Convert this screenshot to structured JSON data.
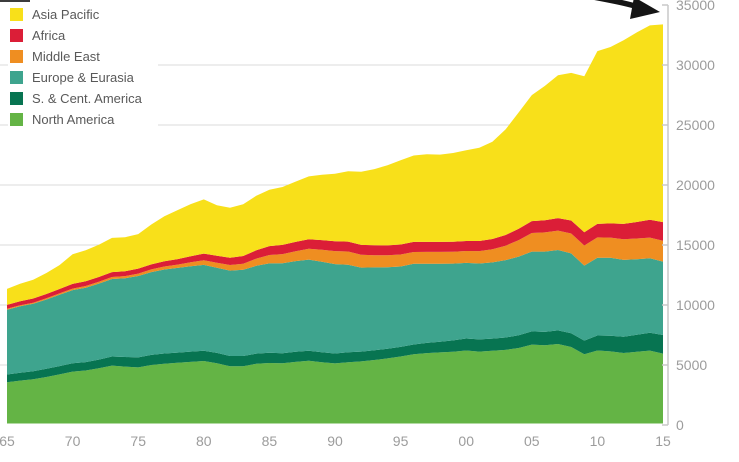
{
  "chart_data": {
    "type": "area",
    "stacked": true,
    "title": "",
    "xlabel": "",
    "ylabel": "",
    "x_years": [
      1965,
      1966,
      1967,
      1968,
      1969,
      1970,
      1971,
      1972,
      1973,
      1974,
      1975,
      1976,
      1977,
      1978,
      1979,
      1980,
      1981,
      1982,
      1983,
      1984,
      1985,
      1986,
      1987,
      1988,
      1989,
      1990,
      1991,
      1992,
      1993,
      1994,
      1995,
      1996,
      1997,
      1998,
      1999,
      2000,
      2001,
      2002,
      2003,
      2004,
      2005,
      2006,
      2007,
      2008,
      2009,
      2010,
      2011,
      2012,
      2013,
      2014,
      2015
    ],
    "x_tick_years": [
      1965,
      1970,
      1975,
      1980,
      1985,
      1990,
      1995,
      2000,
      2005,
      2010,
      2015
    ],
    "x_tick_labels": [
      "65",
      "70",
      "75",
      "80",
      "85",
      "90",
      "95",
      "00",
      "05",
      "10",
      "15"
    ],
    "ylim": [
      0,
      35000
    ],
    "y_ticks": [
      0,
      5000,
      10000,
      15000,
      20000,
      25000,
      30000,
      35000
    ],
    "y_tick_labels": [
      "0",
      "5000",
      "10000",
      "15000",
      "20000",
      "25000",
      "30000",
      "35000"
    ],
    "y_axis_side": "right",
    "grid": "horizontal",
    "series": [
      {
        "name": "North America",
        "color": "#64B445",
        "values": [
          3560,
          3700,
          3810,
          4000,
          4220,
          4450,
          4540,
          4730,
          4950,
          4870,
          4800,
          5000,
          5110,
          5180,
          5260,
          5330,
          5150,
          4900,
          4900,
          5100,
          5170,
          5140,
          5260,
          5350,
          5230,
          5130,
          5230,
          5300,
          5420,
          5550,
          5710,
          5890,
          5990,
          6050,
          6110,
          6210,
          6120,
          6180,
          6260,
          6420,
          6700,
          6650,
          6750,
          6500,
          5900,
          6210,
          6130,
          6000,
          6100,
          6200,
          5950
        ]
      },
      {
        "name": "S. & Cent. America",
        "color": "#077451",
        "values": [
          650,
          660,
          670,
          680,
          690,
          690,
          700,
          720,
          760,
          800,
          830,
          840,
          845,
          850,
          855,
          860,
          855,
          850,
          850,
          850,
          850,
          845,
          840,
          835,
          832,
          830,
          825,
          820,
          815,
          808,
          800,
          820,
          850,
          890,
          940,
          1000,
          1010,
          1020,
          1030,
          1060,
          1100,
          1110,
          1130,
          1150,
          1130,
          1250,
          1300,
          1360,
          1420,
          1490,
          1550
        ]
      },
      {
        "name": "Europe & Eurasia",
        "color": "#3EA48E",
        "values": [
          5390,
          5530,
          5620,
          5780,
          5940,
          6100,
          6200,
          6330,
          6460,
          6560,
          6790,
          6900,
          7000,
          7060,
          7120,
          7150,
          7100,
          7120,
          7180,
          7320,
          7450,
          7500,
          7560,
          7600,
          7550,
          7450,
          7300,
          7000,
          6900,
          6780,
          6700,
          6720,
          6600,
          6500,
          6400,
          6300,
          6330,
          6350,
          6450,
          6550,
          6650,
          6690,
          6700,
          6650,
          6250,
          6470,
          6500,
          6400,
          6300,
          6200,
          6120
        ]
      },
      {
        "name": "Middle East",
        "color": "#EF8E21",
        "values": [
          80,
          90,
          95,
          105,
          115,
          130,
          140,
          150,
          165,
          180,
          200,
          225,
          250,
          280,
          330,
          390,
          420,
          460,
          510,
          600,
          700,
          760,
          820,
          900,
          990,
          1080,
          1100,
          1060,
          1010,
          1000,
          1000,
          990,
          985,
          985,
          985,
          990,
          1030,
          1090,
          1200,
          1380,
          1550,
          1600,
          1620,
          1660,
          1680,
          1700,
          1690,
          1720,
          1720,
          1730,
          1740
        ]
      },
      {
        "name": "Africa",
        "color": "#DB1E37",
        "values": [
          330,
          340,
          345,
          355,
          370,
          390,
          395,
          400,
          405,
          410,
          410,
          420,
          435,
          455,
          500,
          550,
          580,
          610,
          640,
          690,
          740,
          760,
          780,
          800,
          810,
          820,
          825,
          830,
          830,
          830,
          830,
          835,
          835,
          830,
          830,
          830,
          840,
          860,
          890,
          940,
          990,
          1010,
          1040,
          1080,
          1100,
          1130,
          1180,
          1280,
          1380,
          1480,
          1550
        ]
      },
      {
        "name": "Asia Pacific",
        "color": "#F8E01A",
        "values": [
          1330,
          1450,
          1560,
          1750,
          1990,
          2470,
          2580,
          2690,
          2850,
          2830,
          2880,
          3320,
          3760,
          4080,
          4340,
          4520,
          4200,
          4160,
          4320,
          4540,
          4690,
          4830,
          5020,
          5230,
          5440,
          5630,
          5860,
          6100,
          6350,
          6680,
          7030,
          7200,
          7300,
          7280,
          7400,
          7570,
          7780,
          8100,
          8800,
          9700,
          10500,
          11200,
          11900,
          12300,
          13000,
          14400,
          14700,
          15300,
          15800,
          16200,
          16470
        ]
      }
    ],
    "legend": {
      "position": "top-left",
      "labels_top_to_bottom": [
        "Asia Pacific",
        "Africa",
        "Middle East",
        "Europe & Eurasia",
        "S. & Cent. America",
        "North America"
      ]
    },
    "annotation": {
      "type": "arrow",
      "color": "#151515",
      "points_to": "top right of stacked area near 35000 axis tick"
    },
    "style": {
      "gridline_color": "#DBDBDB",
      "axis_line_color": "#C8C8C8",
      "tick_label_color": "#9C9C9C",
      "legend_text_color": "#595959"
    }
  }
}
